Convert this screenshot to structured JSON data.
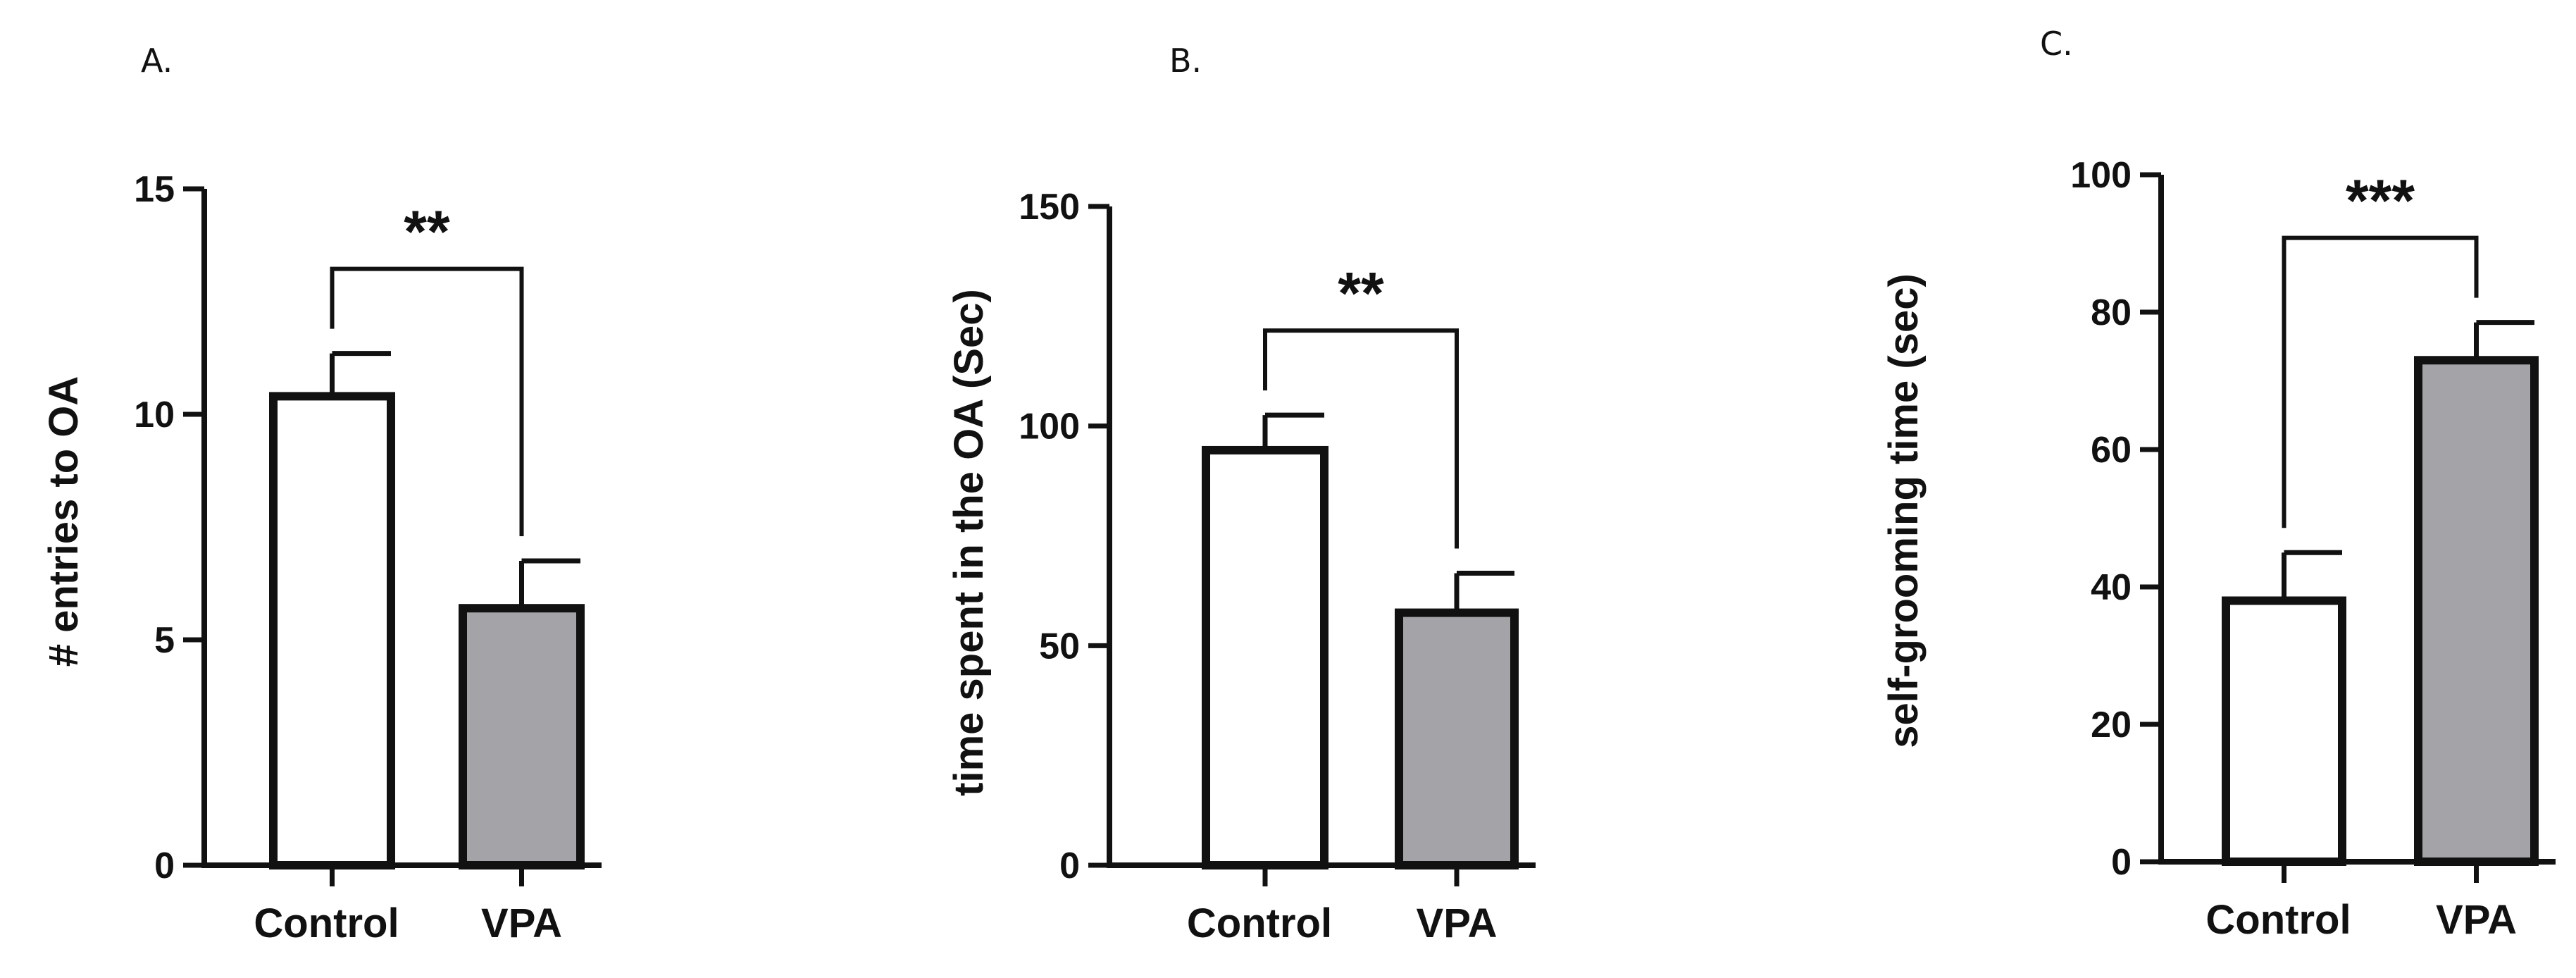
{
  "figure": {
    "colors": {
      "axis": "#111111",
      "control_fill": "#ffffff",
      "vpa_fill": "#a3a3a8"
    }
  },
  "chart_data": [
    {
      "panel": "A.",
      "type": "bar",
      "categories": [
        "Control",
        "VPA"
      ],
      "series": [
        {
          "values": [
            10.4,
            5.7
          ],
          "errors": [
            0.95,
            1.05
          ]
        }
      ],
      "ylabel": "# entries to OA",
      "ylim": [
        0,
        15
      ],
      "yticks": [
        0,
        5,
        10,
        15
      ],
      "significance": "**",
      "grid": false
    },
    {
      "panel": "B.",
      "type": "bar",
      "categories": [
        "Control",
        "VPA"
      ],
      "series": [
        {
          "values": [
            94.5,
            57.5
          ],
          "errors": [
            8.0,
            9.0
          ]
        }
      ],
      "ylabel": "time spent in the OA (Sec)",
      "ylim": [
        0,
        150
      ],
      "yticks": [
        0,
        50,
        100,
        150
      ],
      "significance": "**",
      "grid": false
    },
    {
      "panel": "C.",
      "type": "bar",
      "categories": [
        "Control",
        "VPA"
      ],
      "series": [
        {
          "values": [
            38,
            73
          ],
          "errors": [
            7,
            5.5
          ]
        }
      ],
      "ylabel": "self-grooming time (sec)",
      "ylim": [
        0,
        100
      ],
      "yticks": [
        0,
        20,
        40,
        60,
        80,
        100
      ],
      "significance": "***",
      "grid": false
    }
  ]
}
